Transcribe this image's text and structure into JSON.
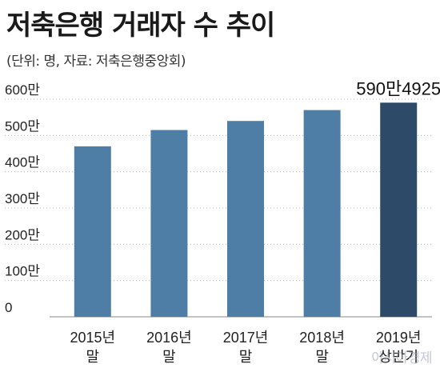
{
  "chart_data": {
    "type": "bar",
    "title": "저축은행 거래자 수 추이",
    "subtitle": "(단위: 명, 자료: 저축은행중앙회)",
    "categories": [
      [
        "2015년",
        "말"
      ],
      [
        "2016년",
        "말"
      ],
      [
        "2017년",
        "말"
      ],
      [
        "2018년",
        "말"
      ],
      [
        "2019년",
        "상반기"
      ]
    ],
    "values": [
      4700000,
      5150000,
      5400000,
      5700000,
      5904925
    ],
    "ylim": [
      0,
      6000000
    ],
    "yticks": [
      {
        "value": 0,
        "label": "0"
      },
      {
        "value": 1000000,
        "label": "100만"
      },
      {
        "value": 2000000,
        "label": "200만"
      },
      {
        "value": 3000000,
        "label": "300만"
      },
      {
        "value": 4000000,
        "label": "400만"
      },
      {
        "value": 5000000,
        "label": "500만"
      },
      {
        "value": 6000000,
        "label": "600만"
      }
    ],
    "data_labels": [
      "",
      "",
      "",
      "",
      "590만4925"
    ],
    "grid": true,
    "colors": {
      "bar": "#4e7ea6",
      "bar_highlight": "#2d4b69"
    }
  },
  "watermark": "아시아경제"
}
